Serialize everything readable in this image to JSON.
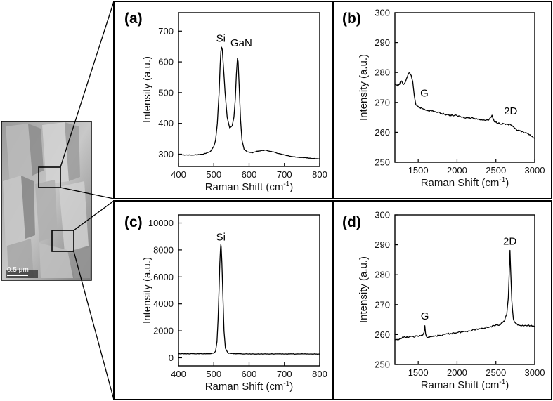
{
  "sem_image": {
    "scale_bar_label": "0.5 μm"
  },
  "chart_data": [
    {
      "id": "a",
      "label": "(a)",
      "type": "line",
      "xlabel": "Raman Shift (cm",
      "xlabel_sup": "-1",
      "xlabel_end": ")",
      "ylabel": "Intensity (a.u.)",
      "xlim": [
        400,
        800
      ],
      "ylim": [
        260,
        760
      ],
      "xticks": [
        400,
        500,
        600,
        700,
        800
      ],
      "yticks": [
        300,
        400,
        500,
        600,
        700
      ],
      "annotations": [
        {
          "text": "Si",
          "x": 520,
          "y": 665
        },
        {
          "text": "GaN",
          "x": 578,
          "y": 650
        }
      ],
      "series": [
        {
          "name": "spectrum",
          "points": [
            [
              400,
              298
            ],
            [
              440,
              297
            ],
            [
              470,
              300
            ],
            [
              490,
              308
            ],
            [
              500,
              325
            ],
            [
              505,
              345
            ],
            [
              510,
              400
            ],
            [
              515,
              500
            ],
            [
              518,
              590
            ],
            [
              520,
              635
            ],
            [
              522,
              648
            ],
            [
              524,
              640
            ],
            [
              527,
              590
            ],
            [
              532,
              500
            ],
            [
              538,
              420
            ],
            [
              545,
              385
            ],
            [
              552,
              392
            ],
            [
              557,
              420
            ],
            [
              561,
              480
            ],
            [
              564,
              560
            ],
            [
              567,
              612
            ],
            [
              569,
              600
            ],
            [
              572,
              520
            ],
            [
              576,
              410
            ],
            [
              580,
              345
            ],
            [
              586,
              315
            ],
            [
              595,
              307
            ],
            [
              610,
              305
            ],
            [
              625,
              310
            ],
            [
              645,
              313
            ],
            [
              665,
              308
            ],
            [
              690,
              300
            ],
            [
              720,
              292
            ],
            [
              750,
              289
            ],
            [
              780,
              286
            ],
            [
              800,
              285
            ]
          ]
        }
      ]
    },
    {
      "id": "b",
      "label": "(b)",
      "type": "line",
      "xlabel": "Raman Shift (cm",
      "xlabel_sup": "-1",
      "xlabel_end": ")",
      "ylabel": "Intensity (a.u.)",
      "xlim": [
        1200,
        3000
      ],
      "ylim": [
        250,
        300
      ],
      "xticks": [
        1500,
        2000,
        2500,
        3000
      ],
      "yticks": [
        250,
        260,
        270,
        280,
        290,
        300
      ],
      "annotations": [
        {
          "text": "G",
          "x": 1580,
          "y": 272
        },
        {
          "text": "2D",
          "x": 2690,
          "y": 266
        }
      ],
      "series": [
        {
          "name": "spectrum",
          "points": [
            [
              1200,
              276
            ],
            [
              1240,
              275.5
            ],
            [
              1280,
              277
            ],
            [
              1320,
              276
            ],
            [
              1360,
              278.5
            ],
            [
              1380,
              280
            ],
            [
              1410,
              279
            ],
            [
              1430,
              277
            ],
            [
              1450,
              272
            ],
            [
              1470,
              269
            ],
            [
              1500,
              268.5
            ],
            [
              1550,
              268
            ],
            [
              1600,
              267.5
            ],
            [
              1700,
              267
            ],
            [
              1800,
              266.3
            ],
            [
              1900,
              265.8
            ],
            [
              2000,
              265.5
            ],
            [
              2100,
              265
            ],
            [
              2200,
              264.7
            ],
            [
              2300,
              264.3
            ],
            [
              2400,
              264
            ],
            [
              2450,
              265.5
            ],
            [
              2480,
              263.5
            ],
            [
              2550,
              263
            ],
            [
              2600,
              262.8
            ],
            [
              2690,
              262.5
            ],
            [
              2750,
              261
            ],
            [
              2850,
              260
            ],
            [
              2950,
              259
            ],
            [
              3000,
              258
            ]
          ]
        }
      ]
    },
    {
      "id": "c",
      "label": "(c)",
      "type": "line",
      "xlabel": "Raman Shift (cm",
      "xlabel_sup": "-1",
      "xlabel_end": ")",
      "ylabel": "Intensity (a.u.)",
      "xlim": [
        400,
        800
      ],
      "ylim": [
        -600,
        10600
      ],
      "xticks": [
        400,
        500,
        600,
        700,
        800
      ],
      "yticks": [
        0,
        2000,
        4000,
        6000,
        8000,
        10000
      ],
      "annotations": [
        {
          "text": "Si",
          "x": 520,
          "y": 8700
        }
      ],
      "series": [
        {
          "name": "spectrum",
          "points": [
            [
              400,
              300
            ],
            [
              450,
              300
            ],
            [
              490,
              310
            ],
            [
              500,
              340
            ],
            [
              505,
              500
            ],
            [
              509,
              1200
            ],
            [
              512,
              2800
            ],
            [
              515,
              5200
            ],
            [
              517,
              7000
            ],
            [
              519,
              8100
            ],
            [
              520,
              8400
            ],
            [
              521,
              8200
            ],
            [
              523,
              7000
            ],
            [
              526,
              4500
            ],
            [
              529,
              2000
            ],
            [
              533,
              700
            ],
            [
              540,
              350
            ],
            [
              560,
              300
            ],
            [
              600,
              290
            ],
            [
              700,
              285
            ],
            [
              800,
              285
            ]
          ]
        }
      ]
    },
    {
      "id": "d",
      "label": "(d)",
      "type": "line",
      "xlabel": "Raman Shift (cm",
      "xlabel_sup": "-1",
      "xlabel_end": ")",
      "ylabel": "Intensity (a.u.)",
      "xlim": [
        1200,
        3000
      ],
      "ylim": [
        250,
        300
      ],
      "xticks": [
        1500,
        2000,
        2500,
        3000
      ],
      "yticks": [
        250,
        260,
        270,
        280,
        290,
        300
      ],
      "annotations": [
        {
          "text": "G",
          "x": 1585,
          "y": 265
        },
        {
          "text": "2D",
          "x": 2680,
          "y": 290
        }
      ],
      "series": [
        {
          "name": "spectrum",
          "points": [
            [
              1200,
              258
            ],
            [
              1250,
              258.5
            ],
            [
              1300,
              259
            ],
            [
              1400,
              259.2
            ],
            [
              1500,
              259.5
            ],
            [
              1560,
              259.8
            ],
            [
              1575,
              260.5
            ],
            [
              1585,
              263
            ],
            [
              1595,
              260
            ],
            [
              1620,
              259
            ],
            [
              1700,
              259.5
            ],
            [
              1800,
              259.8
            ],
            [
              1900,
              260.3
            ],
            [
              2000,
              260.7
            ],
            [
              2100,
              261
            ],
            [
              2200,
              261.5
            ],
            [
              2300,
              262
            ],
            [
              2400,
              262.5
            ],
            [
              2500,
              263
            ],
            [
              2560,
              263.5
            ],
            [
              2610,
              264.5
            ],
            [
              2640,
              267
            ],
            [
              2660,
              272
            ],
            [
              2675,
              283
            ],
            [
              2682,
              288
            ],
            [
              2690,
              282
            ],
            [
              2705,
              271
            ],
            [
              2725,
              265
            ],
            [
              2760,
              263.5
            ],
            [
              2820,
              263
            ],
            [
              2900,
              263
            ],
            [
              3000,
              262.8
            ]
          ]
        }
      ]
    }
  ]
}
